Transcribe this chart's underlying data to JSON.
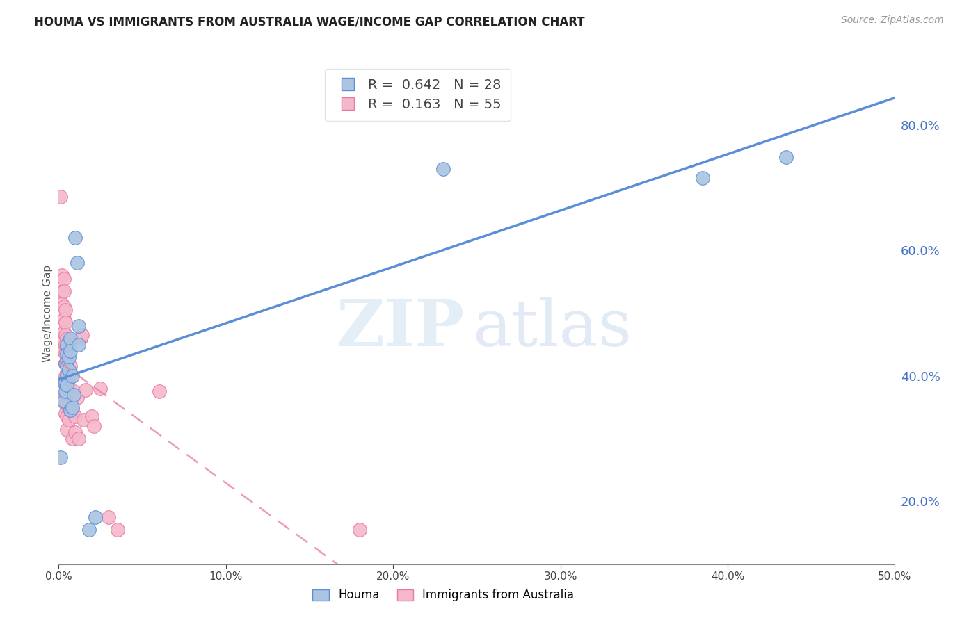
{
  "title": "HOUMA VS IMMIGRANTS FROM AUSTRALIA WAGE/INCOME GAP CORRELATION CHART",
  "source": "Source: ZipAtlas.com",
  "ylabel": "Wage/Income Gap",
  "xlim": [
    0.0,
    0.5
  ],
  "ylim": [
    0.1,
    0.9
  ],
  "xticks": [
    0.0,
    0.1,
    0.2,
    0.3,
    0.4,
    0.5
  ],
  "yticks_right": [
    0.2,
    0.4,
    0.6,
    0.8
  ],
  "houma_R": 0.642,
  "houma_N": 28,
  "australia_R": 0.163,
  "australia_N": 55,
  "houma_color": "#aac4e2",
  "houma_line_color": "#5b8ed6",
  "australia_color": "#f5b8cb",
  "australia_line_color": "#e87aa0",
  "houma_points": [
    [
      0.001,
      0.27
    ],
    [
      0.003,
      0.39
    ],
    [
      0.003,
      0.36
    ],
    [
      0.004,
      0.42
    ],
    [
      0.004,
      0.39
    ],
    [
      0.004,
      0.375
    ],
    [
      0.005,
      0.45
    ],
    [
      0.005,
      0.435
    ],
    [
      0.005,
      0.415
    ],
    [
      0.005,
      0.4
    ],
    [
      0.005,
      0.385
    ],
    [
      0.006,
      0.43
    ],
    [
      0.006,
      0.41
    ],
    [
      0.007,
      0.46
    ],
    [
      0.007,
      0.44
    ],
    [
      0.007,
      0.345
    ],
    [
      0.008,
      0.4
    ],
    [
      0.008,
      0.35
    ],
    [
      0.009,
      0.37
    ],
    [
      0.01,
      0.62
    ],
    [
      0.011,
      0.58
    ],
    [
      0.012,
      0.45
    ],
    [
      0.012,
      0.48
    ],
    [
      0.018,
      0.155
    ],
    [
      0.022,
      0.175
    ],
    [
      0.23,
      0.73
    ],
    [
      0.385,
      0.715
    ],
    [
      0.435,
      0.748
    ]
  ],
  "australia_points": [
    [
      0.001,
      0.685
    ],
    [
      0.002,
      0.56
    ],
    [
      0.002,
      0.535
    ],
    [
      0.002,
      0.515
    ],
    [
      0.003,
      0.555
    ],
    [
      0.003,
      0.535
    ],
    [
      0.003,
      0.51
    ],
    [
      0.003,
      0.49
    ],
    [
      0.003,
      0.47
    ],
    [
      0.003,
      0.455
    ],
    [
      0.003,
      0.44
    ],
    [
      0.004,
      0.505
    ],
    [
      0.004,
      0.485
    ],
    [
      0.004,
      0.465
    ],
    [
      0.004,
      0.45
    ],
    [
      0.004,
      0.435
    ],
    [
      0.004,
      0.42
    ],
    [
      0.004,
      0.4
    ],
    [
      0.004,
      0.385
    ],
    [
      0.004,
      0.37
    ],
    [
      0.004,
      0.355
    ],
    [
      0.004,
      0.34
    ],
    [
      0.005,
      0.46
    ],
    [
      0.005,
      0.445
    ],
    [
      0.005,
      0.425
    ],
    [
      0.005,
      0.405
    ],
    [
      0.005,
      0.39
    ],
    [
      0.005,
      0.37
    ],
    [
      0.005,
      0.355
    ],
    [
      0.005,
      0.335
    ],
    [
      0.005,
      0.315
    ],
    [
      0.006,
      0.455
    ],
    [
      0.006,
      0.395
    ],
    [
      0.006,
      0.355
    ],
    [
      0.006,
      0.33
    ],
    [
      0.007,
      0.415
    ],
    [
      0.007,
      0.345
    ],
    [
      0.008,
      0.345
    ],
    [
      0.008,
      0.3
    ],
    [
      0.009,
      0.375
    ],
    [
      0.01,
      0.335
    ],
    [
      0.01,
      0.31
    ],
    [
      0.011,
      0.365
    ],
    [
      0.012,
      0.3
    ],
    [
      0.013,
      0.46
    ],
    [
      0.014,
      0.465
    ],
    [
      0.015,
      0.33
    ],
    [
      0.016,
      0.378
    ],
    [
      0.02,
      0.335
    ],
    [
      0.021,
      0.32
    ],
    [
      0.025,
      0.38
    ],
    [
      0.03,
      0.175
    ],
    [
      0.035,
      0.155
    ],
    [
      0.06,
      0.375
    ],
    [
      0.18,
      0.155
    ]
  ]
}
